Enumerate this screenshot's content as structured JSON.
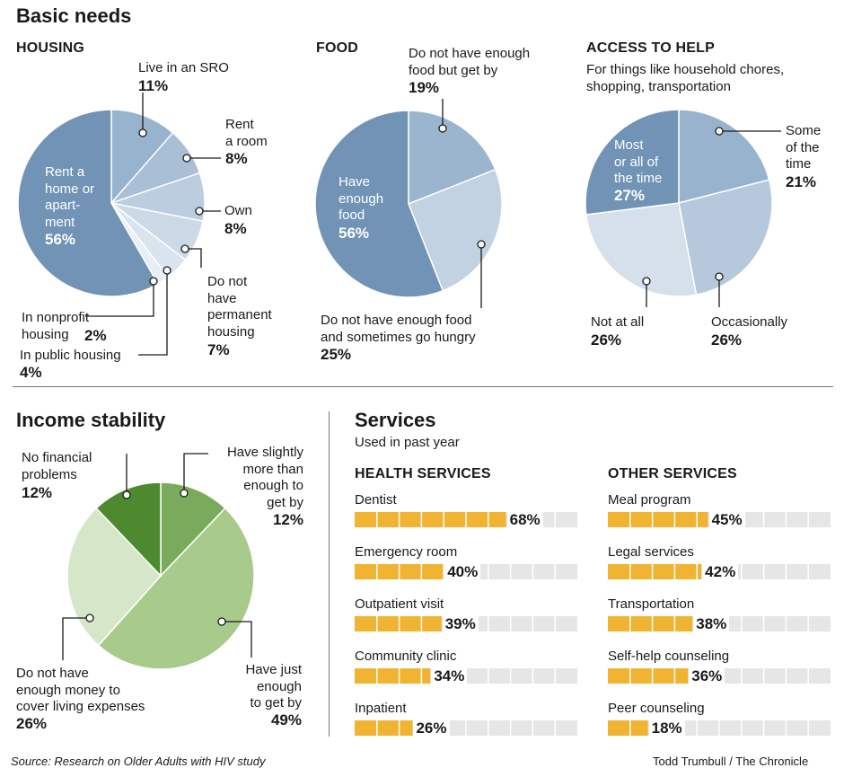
{
  "header": {
    "title": "Basic needs"
  },
  "housing": {
    "title": "HOUSING",
    "chart_data": {
      "type": "pie",
      "title": "HOUSING",
      "slices": [
        {
          "label": "Live in an SRO",
          "value": 11,
          "pct": "11%",
          "color": "#98b3cd"
        },
        {
          "label": "Rent a room",
          "value": 8,
          "pct": "8%",
          "color": "#a8bfd6"
        },
        {
          "label": "Own",
          "value": 8,
          "pct": "8%",
          "color": "#bccde0"
        },
        {
          "label": "Do not have permanent housing",
          "value": 7,
          "pct": "7%",
          "color": "#ccd9e7"
        },
        {
          "label": "In public housing",
          "value": 4,
          "pct": "4%",
          "color": "#dae4ee"
        },
        {
          "label": "In nonprofit housing",
          "value": 2,
          "pct": "2%",
          "color": "#e7eef5"
        },
        {
          "label": "Rent a home or apart-ment",
          "value": 56,
          "pct": "56%",
          "color": "#7194b6"
        }
      ]
    },
    "labels": {
      "sro": "Live in an SRO",
      "room_1": "Rent",
      "room_2": "a room",
      "own": "Own",
      "perm_1": "Do not",
      "perm_2": "have",
      "perm_3": "permanent",
      "perm_4": "housing",
      "nonprofit_1": "In nonprofit",
      "nonprofit_2": "housing",
      "public": "In public housing",
      "rent_1": "Rent a",
      "rent_2": "home or",
      "rent_3": "apart-",
      "rent_4": "ment"
    }
  },
  "food": {
    "title": "FOOD",
    "chart_data": {
      "type": "pie",
      "title": "FOOD",
      "slices": [
        {
          "label": "Do not have enough food but get by",
          "value": 19,
          "pct": "19%",
          "color": "#9bb5ce"
        },
        {
          "label": "Do not have enough food and sometimes go hungry",
          "value": 25,
          "pct": "25%",
          "color": "#c3d2e2"
        },
        {
          "label": "Have enough food",
          "value": 56,
          "pct": "56%",
          "color": "#7194b6"
        }
      ]
    },
    "labels": {
      "getby_1": "Do not have enough",
      "getby_2": "food but get by",
      "hungry_1": "Do not have enough food",
      "hungry_2": "and sometimes go hungry",
      "enough_1": "Have",
      "enough_2": "enough",
      "enough_3": "food"
    }
  },
  "access": {
    "title": "ACCESS TO HELP",
    "subtitle_1": "For things like household chores,",
    "subtitle_2": "shopping, transportation",
    "chart_data": {
      "type": "pie",
      "title": "ACCESS TO HELP",
      "slices": [
        {
          "label": "Some of the time",
          "value": 21,
          "pct": "21%",
          "color": "#98b3cd"
        },
        {
          "label": "Occasionally",
          "value": 26,
          "pct": "26%",
          "color": "#b5c8dc"
        },
        {
          "label": "Not at all",
          "value": 26,
          "pct": "26%",
          "color": "#d5e0eb"
        },
        {
          "label": "Most or all of the time",
          "value": 27,
          "pct": "27%",
          "color": "#7194b6"
        }
      ]
    },
    "labels": {
      "some_1": "Some",
      "some_2": "of the",
      "some_3": "time",
      "occasionally": "Occasionally",
      "notatall": "Not at all",
      "most_1": "Most",
      "most_2": "or all of",
      "most_3": "the time"
    }
  },
  "income": {
    "title": "Income stability",
    "chart_data": {
      "type": "pie",
      "title": "Income stability",
      "slices": [
        {
          "label": "Have slightly more than enough to get by",
          "value": 12,
          "pct": "12%",
          "color": "#7aab5c"
        },
        {
          "label": "Have just enough to get by",
          "value": 49,
          "pct": "49%",
          "color": "#a8ca8a"
        },
        {
          "label": "Do not have enough money to cover living expenses",
          "value": 26,
          "pct": "26%",
          "color": "#d6e6c8"
        },
        {
          "label": "No financial problems",
          "value": 12,
          "pct": "12%",
          "color": "#4d8a2f"
        }
      ]
    },
    "labels": {
      "nofin_1": "No financial",
      "nofin_2": "problems",
      "slight_1": "Have slightly",
      "slight_2": "more than",
      "slight_3": "enough to",
      "slight_4": "get by",
      "just_1": "Have just",
      "just_2": "enough",
      "just_3": "to get by",
      "notenough_1": "Do not have",
      "notenough_2": "enough money to",
      "notenough_3": "cover living expenses"
    }
  },
  "services": {
    "title": "Services",
    "subtitle": "Used in past year",
    "health_title": "HEALTH SERVICES",
    "other_title": "OTHER SERVICES",
    "chart_data": [
      {
        "type": "bar",
        "title": "HEALTH SERVICES",
        "orientation": "horizontal",
        "xlim": [
          0,
          100
        ],
        "categories": [
          "Dentist",
          "Emergency room",
          "Outpatient visit",
          "Community clinic",
          "Inpatient"
        ],
        "values": [
          68,
          40,
          39,
          34,
          26
        ],
        "labels": [
          "68%",
          "40%",
          "39%",
          "34%",
          "26%"
        ]
      },
      {
        "type": "bar",
        "title": "OTHER SERVICES",
        "orientation": "horizontal",
        "xlim": [
          0,
          100
        ],
        "categories": [
          "Meal program",
          "Legal services",
          "Transportation",
          "Self-help counseling",
          "Peer counseling"
        ],
        "values": [
          45,
          42,
          38,
          36,
          18
        ],
        "labels": [
          "45%",
          "42%",
          "38%",
          "36%",
          "18%"
        ]
      }
    ],
    "colors": {
      "bar": "#f0b332",
      "track": "#e6e6e6"
    }
  },
  "footer": {
    "source": "Source: Research on Older Adults with HIV study",
    "credit": "Todd Trumbull / The Chronicle"
  }
}
